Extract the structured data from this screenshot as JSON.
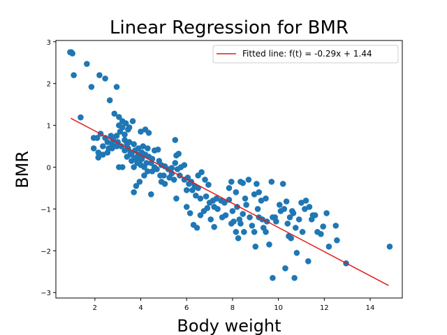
{
  "chart_data": {
    "type": "scatter",
    "title": "Linear Regression for BMR",
    "xlabel": "Body weight",
    "ylabel": "BMR",
    "xlim": [
      0.3,
      15.4
    ],
    "ylim": [
      -3.13,
      3.03
    ],
    "xticks": [
      2,
      4,
      6,
      8,
      10,
      12,
      14
    ],
    "yticks": [
      -3,
      -2,
      -1,
      0,
      1,
      2,
      3
    ],
    "grid": false,
    "legend_position": "top-right",
    "colors": {
      "points": "#1f77b4",
      "line": "#e41a1c"
    },
    "fitted_line": {
      "name": "Fitted line: f(t) = -0.29x + 1.44",
      "x": [
        0.95,
        14.8
      ],
      "y": [
        1.17,
        -2.83
      ]
    },
    "points": [
      [
        0.92,
        2.75
      ],
      [
        0.97,
        2.75
      ],
      [
        1.02,
        2.72
      ],
      [
        1.08,
        2.2
      ],
      [
        1.65,
        2.47
      ],
      [
        1.85,
        1.92
      ],
      [
        2.2,
        2.2
      ],
      [
        2.45,
        2.12
      ],
      [
        2.65,
        1.6
      ],
      [
        2.95,
        1.92
      ],
      [
        1.38,
        1.19
      ],
      [
        1.95,
        0.7
      ],
      [
        2.1,
        0.7
      ],
      [
        2.25,
        0.8
      ],
      [
        2.45,
        0.7
      ],
      [
        2.7,
        0.75
      ],
      [
        1.95,
        0.45
      ],
      [
        2.15,
        0.35
      ],
      [
        2.35,
        0.5
      ],
      [
        2.55,
        0.6
      ],
      [
        2.75,
        0.55
      ],
      [
        2.15,
        0.23
      ],
      [
        2.35,
        0.3
      ],
      [
        2.55,
        0.35
      ],
      [
        2.75,
        0.45
      ],
      [
        2.95,
        0.5
      ],
      [
        2.95,
        0.75
      ],
      [
        3.1,
        0.85
      ],
      [
        3.3,
        0.65
      ],
      [
        3.5,
        0.6
      ],
      [
        3.7,
        0.55
      ],
      [
        3.9,
        0.45
      ],
      [
        4.1,
        0.5
      ],
      [
        4.3,
        0.45
      ],
      [
        2.85,
        1.28
      ],
      [
        3.05,
        1.2
      ],
      [
        3.2,
        1.1
      ],
      [
        3.35,
        1.05
      ],
      [
        3.5,
        0.95
      ],
      [
        3.65,
        1.1
      ],
      [
        3.05,
        1.0
      ],
      [
        3.2,
        0.95
      ],
      [
        3.45,
        0.9
      ],
      [
        4.0,
        0.85
      ],
      [
        4.2,
        0.9
      ],
      [
        4.35,
        0.82
      ],
      [
        3.0,
        0.6
      ],
      [
        3.15,
        0.5
      ],
      [
        3.3,
        0.4
      ],
      [
        3.45,
        0.45
      ],
      [
        3.55,
        0.35
      ],
      [
        3.75,
        0.4
      ],
      [
        3.9,
        0.3
      ],
      [
        4.05,
        0.2
      ],
      [
        4.2,
        0.3
      ],
      [
        4.35,
        0.25
      ],
      [
        4.5,
        0.2
      ],
      [
        4.6,
        0.4
      ],
      [
        4.75,
        0.42
      ],
      [
        3.05,
        0.0
      ],
      [
        3.2,
        0.0
      ],
      [
        3.6,
        0.15
      ],
      [
        3.7,
        0.0
      ],
      [
        3.85,
        0.1
      ],
      [
        4.0,
        0.05
      ],
      [
        4.15,
        0.0
      ],
      [
        4.3,
        -0.1
      ],
      [
        4.45,
        0.1
      ],
      [
        4.6,
        0.0
      ],
      [
        4.8,
        0.15
      ],
      [
        4.9,
        0.05
      ],
      [
        5.05,
        0.02
      ],
      [
        5.2,
        -0.05
      ],
      [
        5.35,
        -0.02
      ],
      [
        5.5,
        0.1
      ],
      [
        5.55,
        0.28
      ],
      [
        5.65,
        0.32
      ],
      [
        5.5,
        0.65
      ],
      [
        5.75,
        0.0
      ],
      [
        5.9,
        0.05
      ],
      [
        5.7,
        -0.2
      ],
      [
        5.9,
        -0.3
      ],
      [
        6.05,
        -0.25
      ],
      [
        6.2,
        -0.35
      ],
      [
        6.35,
        -0.45
      ],
      [
        6.5,
        -0.2
      ],
      [
        6.65,
        -0.12
      ],
      [
        6.8,
        -0.3
      ],
      [
        6.95,
        -0.42
      ],
      [
        3.8,
        -0.45
      ],
      [
        3.7,
        -0.6
      ],
      [
        3.95,
        -0.35
      ],
      [
        4.45,
        -0.65
      ],
      [
        4.9,
        -0.35
      ],
      [
        5.05,
        -0.4
      ],
      [
        5.25,
        -0.25
      ],
      [
        5.45,
        -0.3
      ],
      [
        5.55,
        -0.75
      ],
      [
        6.0,
        -0.55
      ],
      [
        6.5,
        -0.5
      ],
      [
        6.0,
        -0.95
      ],
      [
        6.15,
        -1.1
      ],
      [
        6.3,
        -1.38
      ],
      [
        6.45,
        -1.45
      ],
      [
        6.6,
        -1.15
      ],
      [
        6.75,
        -1.05
      ],
      [
        6.9,
        -0.98
      ],
      [
        7.05,
        -1.25
      ],
      [
        7.2,
        -1.43
      ],
      [
        7.35,
        -1.0
      ],
      [
        7.5,
        -0.8
      ],
      [
        7.65,
        -0.85
      ],
      [
        7.55,
        -1.2
      ],
      [
        7.7,
        -1.15
      ],
      [
        7.85,
        -0.78
      ],
      [
        7.95,
        -1.35
      ],
      [
        8.05,
        -1.3
      ],
      [
        8.15,
        -1.55
      ],
      [
        8.25,
        -1.7
      ],
      [
        8.35,
        -1.35
      ],
      [
        8.45,
        -1.12
      ],
      [
        8.6,
        -0.9
      ],
      [
        8.75,
        -1.2
      ],
      [
        8.85,
        -1.4
      ],
      [
        8.95,
        -1.55
      ],
      [
        7.2,
        -0.95
      ],
      [
        6.85,
        -0.7
      ],
      [
        6.6,
        -0.75
      ],
      [
        6.4,
        -0.68
      ],
      [
        6.25,
        -0.55
      ],
      [
        6.1,
        -0.4
      ],
      [
        7.0,
        -0.85
      ],
      [
        7.15,
        -0.8
      ],
      [
        7.3,
        -0.75
      ],
      [
        7.95,
        -0.35
      ],
      [
        8.15,
        -0.6
      ],
      [
        8.35,
        -0.35
      ],
      [
        8.55,
        -0.75
      ],
      [
        8.7,
        -0.3
      ],
      [
        8.95,
        -0.65
      ],
      [
        9.05,
        -0.4
      ],
      [
        9.15,
        -0.6
      ],
      [
        9.25,
        -0.8
      ],
      [
        9.45,
        -0.75
      ],
      [
        9.7,
        -0.35
      ],
      [
        10.2,
        -0.4
      ],
      [
        9.5,
        -1.3
      ],
      [
        9.3,
        -1.25
      ],
      [
        9.15,
        -1.2
      ],
      [
        9.0,
        -1.9
      ],
      [
        9.45,
        -1.55
      ],
      [
        9.6,
        -1.85
      ],
      [
        9.75,
        -1.2
      ],
      [
        9.9,
        -1.3
      ],
      [
        10.05,
        -0.9
      ],
      [
        10.25,
        -1.0
      ],
      [
        10.4,
        -1.35
      ],
      [
        10.55,
        -1.7
      ],
      [
        10.65,
        -1.1
      ],
      [
        10.75,
        -1.45
      ],
      [
        10.9,
        -1.25
      ],
      [
        11.0,
        -0.85
      ],
      [
        11.15,
        -1.0
      ],
      [
        11.35,
        -0.95
      ],
      [
        11.5,
        -1.15
      ],
      [
        11.7,
        -1.55
      ],
      [
        11.85,
        -1.6
      ],
      [
        11.95,
        -1.42
      ],
      [
        12.1,
        -1.1
      ],
      [
        12.5,
        -1.4
      ],
      [
        12.55,
        -1.75
      ],
      [
        10.45,
        -1.65
      ],
      [
        10.6,
        -1.05
      ],
      [
        10.8,
        -2.05
      ],
      [
        11.05,
        -1.55
      ],
      [
        11.3,
        -2.25
      ],
      [
        10.3,
        -2.42
      ],
      [
        10.7,
        -2.65
      ],
      [
        9.75,
        -2.65
      ],
      [
        12.95,
        -2.3
      ],
      [
        14.85,
        -1.9
      ],
      [
        11.2,
        -0.8
      ],
      [
        10.35,
        -0.82
      ],
      [
        8.45,
        -0.38
      ],
      [
        7.85,
        -0.5
      ],
      [
        8.2,
        -0.95
      ],
      [
        8.0,
        -1.05
      ],
      [
        8.3,
        -1.25
      ],
      [
        8.5,
        -1.55
      ],
      [
        9.1,
        -1.0
      ],
      [
        9.35,
        -1.45
      ],
      [
        9.85,
        -1.2
      ],
      [
        10.1,
        -1.05
      ],
      [
        10.5,
        -1.2
      ],
      [
        11.6,
        -1.15
      ],
      [
        12.2,
        -1.9
      ],
      [
        11.45,
        -1.25
      ],
      [
        4.5,
        -0.1
      ],
      [
        4.7,
        -0.05
      ],
      [
        4.85,
        -0.2
      ],
      [
        5.0,
        -0.2
      ],
      [
        5.35,
        -0.15
      ],
      [
        5.6,
        -0.05
      ],
      [
        3.4,
        0.25
      ],
      [
        3.6,
        0.3
      ],
      [
        3.85,
        0.25
      ],
      [
        4.05,
        0.35
      ],
      [
        3.3,
        0.78
      ],
      [
        2.6,
        0.45
      ],
      [
        2.8,
        0.65
      ],
      [
        3.4,
        0.55
      ],
      [
        3.75,
        0.2
      ],
      [
        3.95,
        0.15
      ],
      [
        4.25,
        0.1
      ],
      [
        4.15,
        -0.2
      ]
    ]
  }
}
